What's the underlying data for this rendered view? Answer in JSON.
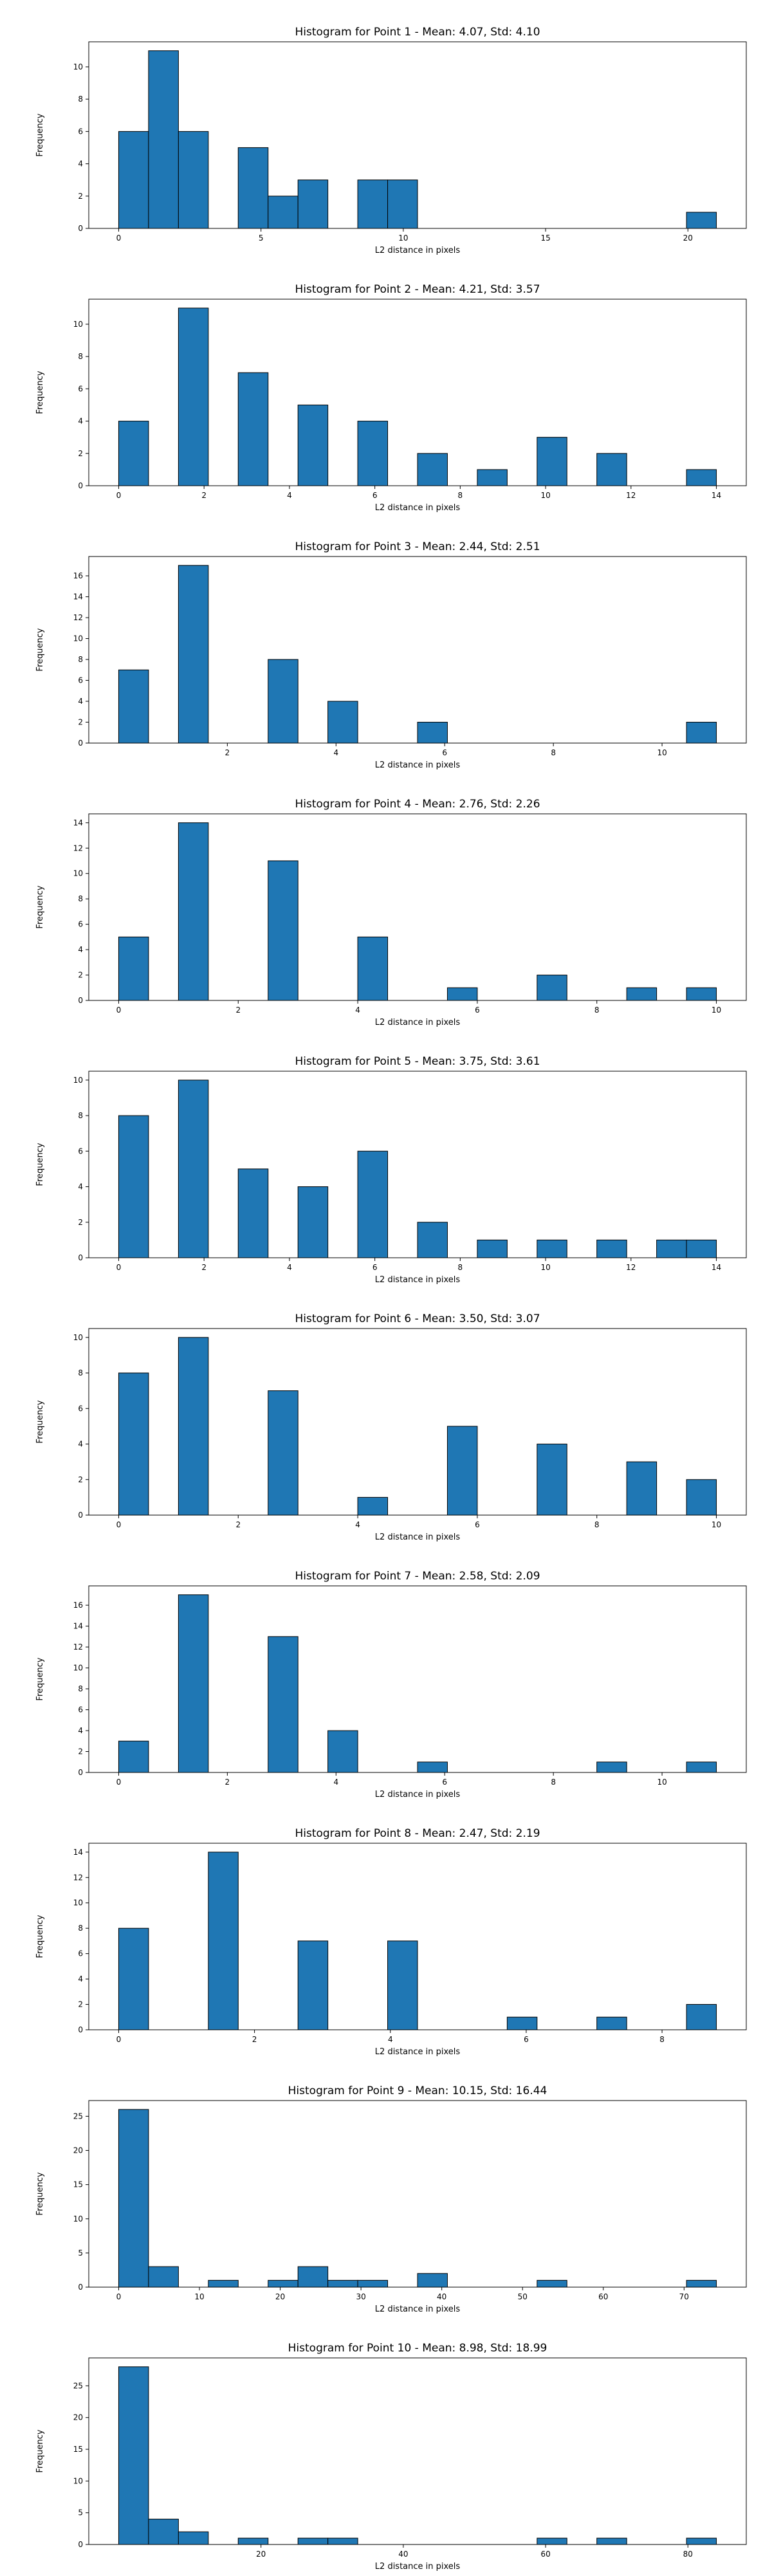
{
  "chart_data": [
    {
      "type": "bar",
      "title": "Histogram for Point 1 - Mean: 4.07, Std: 4.10",
      "xlabel": "L2 distance in pixels",
      "ylabel": "Frequency",
      "xlim": [
        -1.05,
        22.05
      ],
      "ylim": [
        0,
        11.55
      ],
      "bin_width": 1.05,
      "xticks": [
        0,
        5,
        10,
        15,
        20
      ],
      "xtick_labels": [
        "0",
        "5",
        "10",
        "15",
        "20"
      ],
      "yticks": [
        0,
        2,
        4,
        6,
        8,
        10
      ],
      "ytick_labels": [
        "0",
        "2",
        "4",
        "6",
        "8",
        "10"
      ],
      "bins": [
        {
          "x": 0.0,
          "count": 6
        },
        {
          "x": 1.05,
          "count": 11
        },
        {
          "x": 2.1,
          "count": 6
        },
        {
          "x": 4.2,
          "count": 5
        },
        {
          "x": 5.25,
          "count": 2
        },
        {
          "x": 6.3,
          "count": 3
        },
        {
          "x": 8.4,
          "count": 3
        },
        {
          "x": 9.45,
          "count": 3
        },
        {
          "x": 19.95,
          "count": 1
        }
      ],
      "grid": false,
      "bar_color": "#1f77b4"
    },
    {
      "type": "bar",
      "title": "Histogram for Point 2 - Mean: 4.21, Std: 3.57",
      "xlabel": "L2 distance in pixels",
      "ylabel": "Frequency",
      "xlim": [
        -0.7,
        14.7
      ],
      "ylim": [
        0,
        11.55
      ],
      "bin_width": 0.7,
      "xticks": [
        0,
        2,
        4,
        6,
        8,
        10,
        12,
        14
      ],
      "xtick_labels": [
        "0",
        "2",
        "4",
        "6",
        "8",
        "10",
        "12",
        "14"
      ],
      "yticks": [
        0,
        2,
        4,
        6,
        8,
        10
      ],
      "ytick_labels": [
        "0",
        "2",
        "4",
        "6",
        "8",
        "10"
      ],
      "bins": [
        {
          "x": 0.0,
          "count": 4
        },
        {
          "x": 1.4,
          "count": 11
        },
        {
          "x": 2.8,
          "count": 7
        },
        {
          "x": 4.2,
          "count": 5
        },
        {
          "x": 5.6,
          "count": 4
        },
        {
          "x": 7.0,
          "count": 2
        },
        {
          "x": 8.4,
          "count": 1
        },
        {
          "x": 9.8,
          "count": 3
        },
        {
          "x": 11.2,
          "count": 2
        },
        {
          "x": 13.3,
          "count": 1
        }
      ],
      "grid": false,
      "bar_color": "#1f77b4"
    },
    {
      "type": "bar",
      "title": "Histogram for Point 3 - Mean: 2.44, Std: 2.51",
      "xlabel": "L2 distance in pixels",
      "ylabel": "Frequency",
      "xlim": [
        -0.55,
        11.55
      ],
      "ylim": [
        0,
        17.85
      ],
      "bin_width": 0.55,
      "xticks": [
        2,
        4,
        6,
        8,
        10
      ],
      "xtick_labels": [
        "2",
        "4",
        "6",
        "8",
        "10"
      ],
      "yticks": [
        0,
        2,
        4,
        6,
        8,
        10,
        12,
        14,
        16
      ],
      "ytick_labels": [
        "0",
        "2",
        "4",
        "6",
        "8",
        "10",
        "12",
        "14",
        "16"
      ],
      "bins": [
        {
          "x": 0.0,
          "count": 7
        },
        {
          "x": 1.1,
          "count": 17
        },
        {
          "x": 2.75,
          "count": 8
        },
        {
          "x": 3.85,
          "count": 4
        },
        {
          "x": 5.5,
          "count": 2
        },
        {
          "x": 10.45,
          "count": 2
        }
      ],
      "grid": false,
      "bar_color": "#1f77b4"
    },
    {
      "type": "bar",
      "title": "Histogram for Point 4 - Mean: 2.76, Std: 2.26",
      "xlabel": "L2 distance in pixels",
      "ylabel": "Frequency",
      "xlim": [
        -0.5,
        10.5
      ],
      "ylim": [
        0,
        14.7
      ],
      "bin_width": 0.5,
      "xticks": [
        0,
        2,
        4,
        6,
        8,
        10
      ],
      "xtick_labels": [
        "0",
        "2",
        "4",
        "6",
        "8",
        "10"
      ],
      "yticks": [
        0,
        2,
        4,
        6,
        8,
        10,
        12,
        14
      ],
      "ytick_labels": [
        "0",
        "2",
        "4",
        "6",
        "8",
        "10",
        "12",
        "14"
      ],
      "bins": [
        {
          "x": 0.0,
          "count": 5
        },
        {
          "x": 1.0,
          "count": 14
        },
        {
          "x": 2.5,
          "count": 11
        },
        {
          "x": 4.0,
          "count": 5
        },
        {
          "x": 5.5,
          "count": 1
        },
        {
          "x": 7.0,
          "count": 2
        },
        {
          "x": 8.5,
          "count": 1
        },
        {
          "x": 9.5,
          "count": 1
        }
      ],
      "grid": false,
      "bar_color": "#1f77b4"
    },
    {
      "type": "bar",
      "title": "Histogram for Point 5 - Mean: 3.75, Std: 3.61",
      "xlabel": "L2 distance in pixels",
      "ylabel": "Frequency",
      "xlim": [
        -0.7,
        14.7
      ],
      "ylim": [
        0,
        10.5
      ],
      "bin_width": 0.7,
      "xticks": [
        0,
        2,
        4,
        6,
        8,
        10,
        12,
        14
      ],
      "xtick_labels": [
        "0",
        "2",
        "4",
        "6",
        "8",
        "10",
        "12",
        "14"
      ],
      "yticks": [
        0,
        2,
        4,
        6,
        8,
        10
      ],
      "ytick_labels": [
        "0",
        "2",
        "4",
        "6",
        "8",
        "10"
      ],
      "bins": [
        {
          "x": 0.0,
          "count": 8
        },
        {
          "x": 1.4,
          "count": 10
        },
        {
          "x": 2.8,
          "count": 5
        },
        {
          "x": 4.2,
          "count": 4
        },
        {
          "x": 5.6,
          "count": 6
        },
        {
          "x": 7.0,
          "count": 2
        },
        {
          "x": 8.4,
          "count": 1
        },
        {
          "x": 9.8,
          "count": 1
        },
        {
          "x": 11.2,
          "count": 1
        },
        {
          "x": 12.6,
          "count": 1
        },
        {
          "x": 13.3,
          "count": 1
        }
      ],
      "grid": false,
      "bar_color": "#1f77b4"
    },
    {
      "type": "bar",
      "title": "Histogram for Point 6 - Mean: 3.50, Std: 3.07",
      "xlabel": "L2 distance in pixels",
      "ylabel": "Frequency",
      "xlim": [
        -0.5,
        10.5
      ],
      "ylim": [
        0,
        10.5
      ],
      "bin_width": 0.5,
      "xticks": [
        0,
        2,
        4,
        6,
        8,
        10
      ],
      "xtick_labels": [
        "0",
        "2",
        "4",
        "6",
        "8",
        "10"
      ],
      "yticks": [
        0,
        2,
        4,
        6,
        8,
        10
      ],
      "ytick_labels": [
        "0",
        "2",
        "4",
        "6",
        "8",
        "10"
      ],
      "bins": [
        {
          "x": 0.0,
          "count": 8
        },
        {
          "x": 1.0,
          "count": 10
        },
        {
          "x": 2.5,
          "count": 7
        },
        {
          "x": 4.0,
          "count": 1
        },
        {
          "x": 5.5,
          "count": 5
        },
        {
          "x": 7.0,
          "count": 4
        },
        {
          "x": 8.5,
          "count": 3
        },
        {
          "x": 9.5,
          "count": 2
        }
      ],
      "grid": false,
      "bar_color": "#1f77b4"
    },
    {
      "type": "bar",
      "title": "Histogram for Point 7 - Mean: 2.58, Std: 2.09",
      "xlabel": "L2 distance in pixels",
      "ylabel": "Frequency",
      "xlim": [
        -0.55,
        11.55
      ],
      "ylim": [
        0,
        17.85
      ],
      "bin_width": 0.55,
      "xticks": [
        0,
        2,
        4,
        6,
        8,
        10
      ],
      "xtick_labels": [
        "0",
        "2",
        "4",
        "6",
        "8",
        "10"
      ],
      "yticks": [
        0,
        2,
        4,
        6,
        8,
        10,
        12,
        14,
        16
      ],
      "ytick_labels": [
        "0",
        "2",
        "4",
        "6",
        "8",
        "10",
        "12",
        "14",
        "16"
      ],
      "bins": [
        {
          "x": 0.0,
          "count": 3
        },
        {
          "x": 1.1,
          "count": 17
        },
        {
          "x": 2.75,
          "count": 13
        },
        {
          "x": 3.85,
          "count": 4
        },
        {
          "x": 5.5,
          "count": 1
        },
        {
          "x": 8.8,
          "count": 1
        },
        {
          "x": 10.45,
          "count": 1
        }
      ],
      "grid": false,
      "bar_color": "#1f77b4"
    },
    {
      "type": "bar",
      "title": "Histogram for Point 8 - Mean: 2.47, Std: 2.19",
      "xlabel": "L2 distance in pixels",
      "ylabel": "Frequency",
      "xlim": [
        -0.44,
        9.24
      ],
      "ylim": [
        0,
        14.7
      ],
      "bin_width": 0.44,
      "xticks": [
        0,
        2,
        4,
        6,
        8
      ],
      "xtick_labels": [
        "0",
        "2",
        "4",
        "6",
        "8"
      ],
      "yticks": [
        0,
        2,
        4,
        6,
        8,
        10,
        12,
        14
      ],
      "ytick_labels": [
        "0",
        "2",
        "4",
        "6",
        "8",
        "10",
        "12",
        "14"
      ],
      "bins": [
        {
          "x": 0.0,
          "count": 8
        },
        {
          "x": 1.32,
          "count": 14
        },
        {
          "x": 2.64,
          "count": 7
        },
        {
          "x": 3.96,
          "count": 7
        },
        {
          "x": 5.72,
          "count": 1
        },
        {
          "x": 7.04,
          "count": 1
        },
        {
          "x": 8.36,
          "count": 2
        }
      ],
      "grid": false,
      "bar_color": "#1f77b4"
    },
    {
      "type": "bar",
      "title": "Histogram for Point 9 - Mean: 10.15, Std: 16.44",
      "xlabel": "L2 distance in pixels",
      "ylabel": "Frequency",
      "xlim": [
        -3.7,
        77.7
      ],
      "ylim": [
        0,
        27.3
      ],
      "bin_width": 3.7,
      "xticks": [
        0,
        10,
        20,
        30,
        40,
        50,
        60,
        70
      ],
      "xtick_labels": [
        "0",
        "10",
        "20",
        "30",
        "40",
        "50",
        "60",
        "70"
      ],
      "yticks": [
        0,
        5,
        10,
        15,
        20,
        25
      ],
      "ytick_labels": [
        "0",
        "5",
        "10",
        "15",
        "20",
        "25"
      ],
      "bins": [
        {
          "x": 0.0,
          "count": 26
        },
        {
          "x": 3.7,
          "count": 3
        },
        {
          "x": 11.1,
          "count": 1
        },
        {
          "x": 18.5,
          "count": 1
        },
        {
          "x": 22.2,
          "count": 3
        },
        {
          "x": 25.9,
          "count": 1
        },
        {
          "x": 29.6,
          "count": 1
        },
        {
          "x": 37.0,
          "count": 2
        },
        {
          "x": 51.8,
          "count": 1
        },
        {
          "x": 70.3,
          "count": 1
        }
      ],
      "grid": false,
      "bar_color": "#1f77b4"
    },
    {
      "type": "bar",
      "title": "Histogram for Point 10 - Mean: 8.98, Std: 18.99",
      "xlabel": "L2 distance in pixels",
      "ylabel": "Frequency",
      "xlim": [
        -4.2,
        88.2
      ],
      "ylim": [
        0,
        29.4
      ],
      "bin_width": 4.2,
      "xticks": [
        20,
        40,
        60,
        80
      ],
      "xtick_labels": [
        "20",
        "40",
        "60",
        "80"
      ],
      "yticks": [
        0,
        5,
        10,
        15,
        20,
        25
      ],
      "ytick_labels": [
        "0",
        "5",
        "10",
        "15",
        "20",
        "25"
      ],
      "bins": [
        {
          "x": 0.0,
          "count": 28
        },
        {
          "x": 4.2,
          "count": 4
        },
        {
          "x": 8.4,
          "count": 2
        },
        {
          "x": 16.8,
          "count": 1
        },
        {
          "x": 25.2,
          "count": 1
        },
        {
          "x": 29.4,
          "count": 1
        },
        {
          "x": 58.8,
          "count": 1
        },
        {
          "x": 67.2,
          "count": 1
        },
        {
          "x": 79.8,
          "count": 1
        }
      ],
      "grid": false,
      "bar_color": "#1f77b4"
    }
  ]
}
